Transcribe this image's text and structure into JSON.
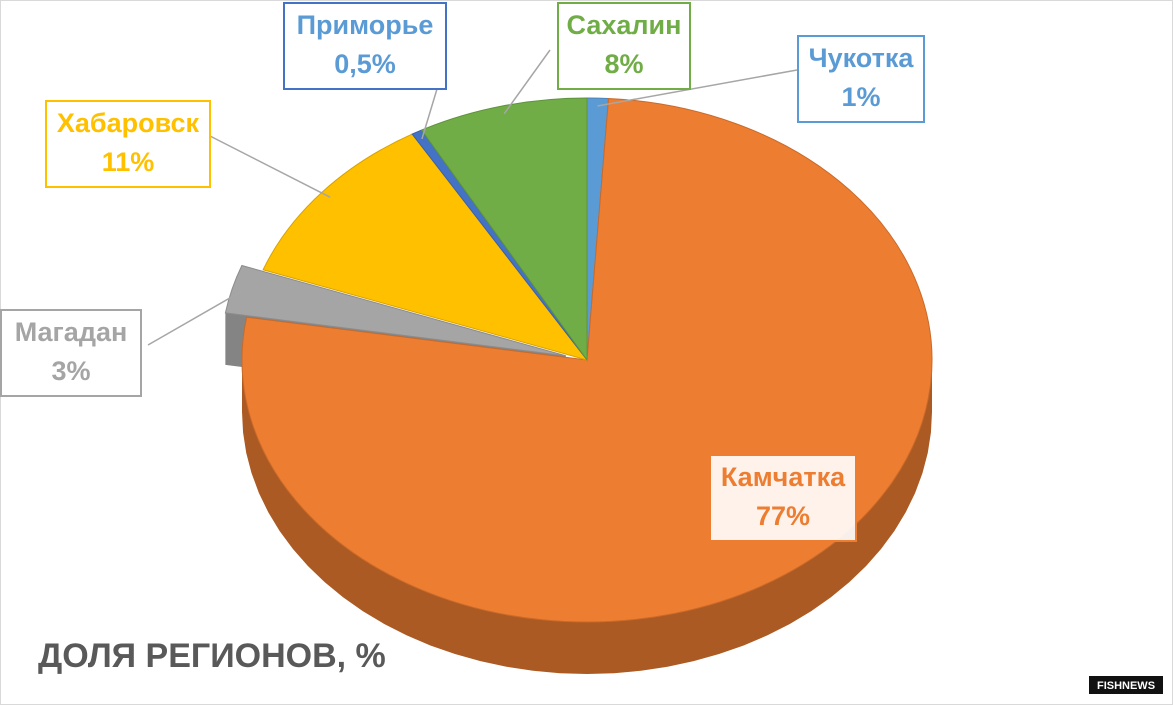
{
  "chart_data": {
    "type": "pie3d",
    "title": "ДОЛЯ РЕГИОНОВ, %",
    "categories": [
      "Чукотка",
      "Камчатка",
      "Магадан",
      "Хабаровск",
      "Приморье",
      "Сахалин"
    ],
    "values": [
      1,
      77,
      3,
      11,
      0.5,
      8
    ],
    "value_labels": [
      "1%",
      "77%",
      "3%",
      "11%",
      "0,5%",
      "8%"
    ],
    "colors": [
      "#5b9bd5",
      "#ed7d31",
      "#a5a5a5",
      "#ffc000",
      "#4472c4",
      "#70ad47"
    ],
    "exploded": [
      "Магадан"
    ],
    "watermark": "FISHNEWS"
  }
}
